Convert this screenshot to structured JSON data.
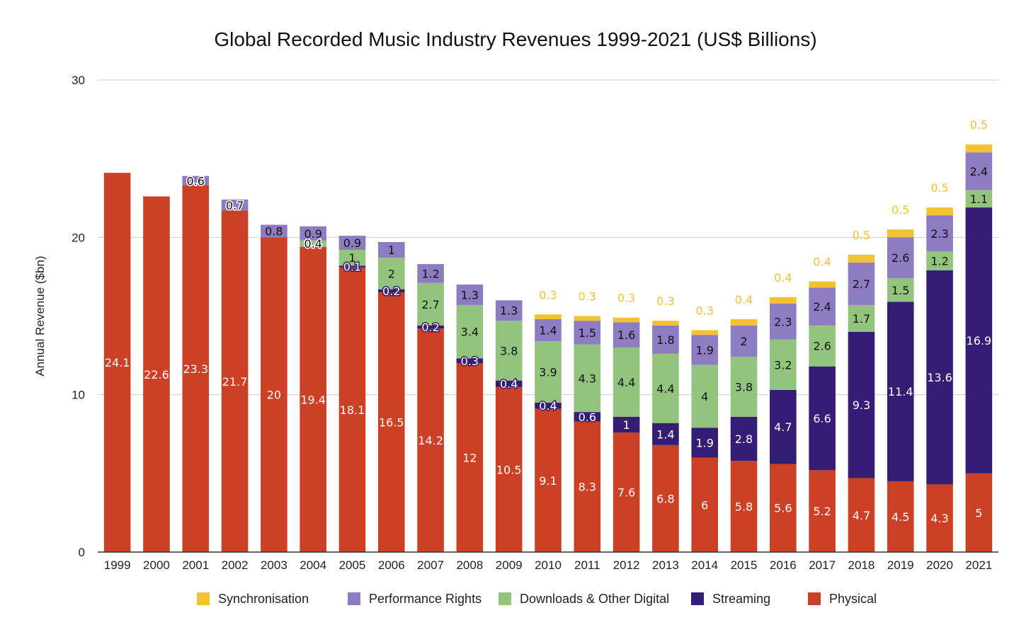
{
  "chart_data": {
    "type": "bar",
    "stacked": true,
    "title": "Global Recorded Music Industry Revenues 1999-2021 (US$ Billions)",
    "xlabel": "",
    "ylabel": "Annual Revenue ($bn)",
    "ylim": [
      0,
      30
    ],
    "yticks": [
      0,
      10,
      20,
      30
    ],
    "grid": true,
    "legend_position": "bottom",
    "categories": [
      "1999",
      "2000",
      "2001",
      "2002",
      "2003",
      "2004",
      "2005",
      "2006",
      "2007",
      "2008",
      "2009",
      "2010",
      "2011",
      "2012",
      "2013",
      "2014",
      "2015",
      "2016",
      "2017",
      "2018",
      "2019",
      "2020",
      "2021"
    ],
    "series": [
      {
        "name": "Physical",
        "color": "#cc4125",
        "label_color": "#ffffff",
        "values": [
          24.1,
          22.6,
          23.3,
          21.7,
          20,
          19.4,
          18.1,
          16.5,
          14.2,
          12,
          10.5,
          9.1,
          8.3,
          7.6,
          6.8,
          6,
          5.8,
          5.6,
          5.2,
          4.7,
          4.5,
          4.3,
          5
        ]
      },
      {
        "name": "Streaming",
        "color": "#351c75",
        "label_color": "#ffffff",
        "values": [
          null,
          null,
          null,
          null,
          null,
          null,
          0.1,
          0.2,
          0.2,
          0.3,
          0.4,
          0.4,
          0.6,
          1,
          1.4,
          1.9,
          2.8,
          4.7,
          6.6,
          9.3,
          11.4,
          13.6,
          16.9
        ]
      },
      {
        "name": "Downloads & Other Digital",
        "color": "#93c47d",
        "label_color": "#111111",
        "values": [
          null,
          null,
          null,
          null,
          null,
          0.4,
          1,
          2,
          2.7,
          3.4,
          3.8,
          3.9,
          4.3,
          4.4,
          4.4,
          4,
          3.8,
          3.2,
          2.6,
          1.7,
          1.5,
          1.2,
          1.1
        ]
      },
      {
        "name": "Performance Rights",
        "color": "#8e7cc3",
        "label_color": "#111111",
        "values": [
          null,
          null,
          0.6,
          0.7,
          0.8,
          0.9,
          0.9,
          1,
          1.2,
          1.3,
          1.3,
          1.4,
          1.5,
          1.6,
          1.8,
          1.9,
          2,
          2.3,
          2.4,
          2.7,
          2.6,
          2.3,
          2.4
        ]
      },
      {
        "name": "Synchronisation",
        "color": "#f1c232",
        "label_color": "#f1c232",
        "values": [
          null,
          null,
          null,
          null,
          null,
          null,
          null,
          null,
          null,
          null,
          null,
          0.3,
          0.3,
          0.3,
          0.3,
          0.3,
          0.4,
          0.4,
          0.4,
          0.5,
          0.5,
          0.5,
          0.5
        ]
      }
    ],
    "legend_order": [
      "Synchronisation",
      "Performance Rights",
      "Downloads & Other Digital",
      "Streaming",
      "Physical"
    ]
  }
}
